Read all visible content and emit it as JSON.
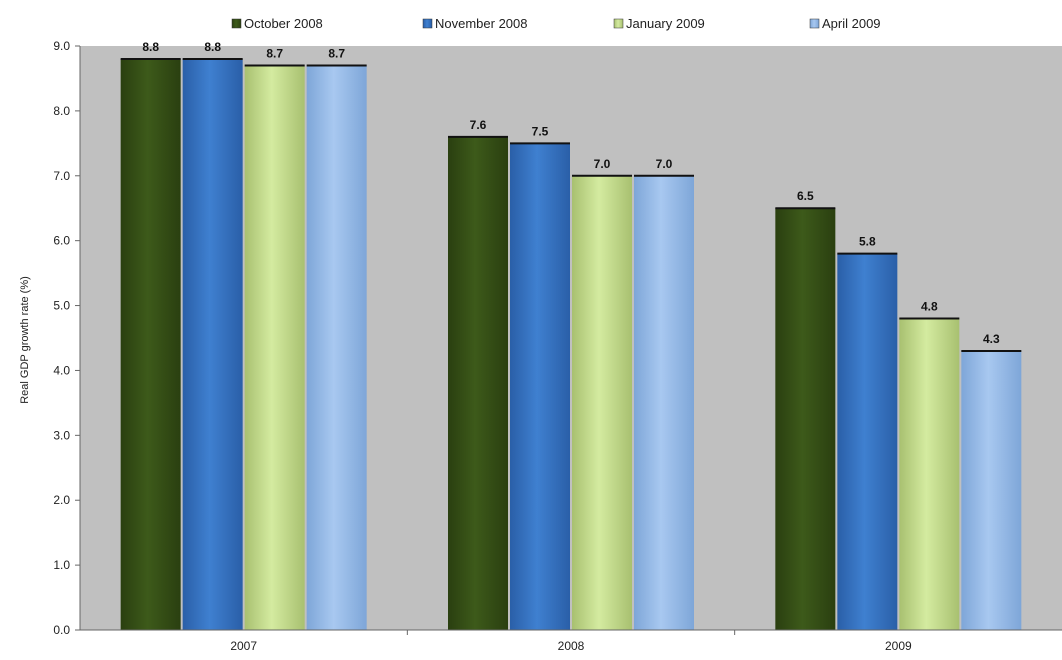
{
  "chart_data": {
    "type": "bar",
    "title": "",
    "xlabel": "",
    "ylabel": "Real GDP growth rate (%)",
    "ylim": [
      0,
      9
    ],
    "yticks": [
      "0.0",
      "1.0",
      "2.0",
      "3.0",
      "4.0",
      "5.0",
      "6.0",
      "7.0",
      "8.0",
      "9.0"
    ],
    "categories": [
      "2007",
      "2008",
      "2009"
    ],
    "series": [
      {
        "name": "October 2008",
        "values": [
          8.8,
          7.6,
          6.5
        ],
        "labels": [
          "8.8",
          "7.6",
          "6.5"
        ]
      },
      {
        "name": "November 2008",
        "values": [
          8.8,
          7.5,
          5.8
        ],
        "labels": [
          "8.8",
          "7.5",
          "5.8"
        ]
      },
      {
        "name": "January 2009",
        "values": [
          8.7,
          7.0,
          4.8
        ],
        "labels": [
          "8.7",
          "7.0",
          "4.8"
        ]
      },
      {
        "name": "April 2009",
        "values": [
          8.7,
          7.0,
          4.3
        ],
        "labels": [
          "8.7",
          "7.0",
          "4.3"
        ]
      }
    ],
    "legend_position": "top",
    "grid": false,
    "plot_background": "#c0c0c0",
    "colors": [
      "#3d5a1a",
      "#3f80d0",
      "#d4eba0",
      "#a8c8f0"
    ],
    "colors_dark": [
      "#2a3f10",
      "#2a5fa8",
      "#a8c070",
      "#7ea6d8"
    ]
  }
}
